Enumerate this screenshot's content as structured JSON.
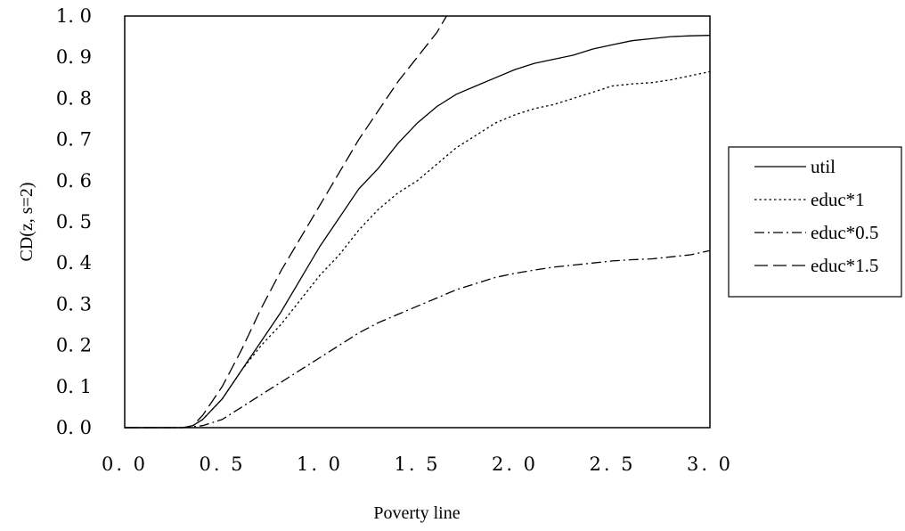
{
  "chart_data": {
    "type": "line",
    "title": "",
    "xlabel": "Poverty line",
    "ylabel": "CD(z, s=2)",
    "xlim": [
      0,
      3
    ],
    "ylim": [
      0,
      1
    ],
    "x_ticks": [
      "0. 0",
      "0. 5",
      "1. 0",
      "1. 5",
      "2. 0",
      "2. 5",
      "3. 0"
    ],
    "y_ticks": [
      "0. 0",
      "0. 1",
      "0. 2",
      "0. 3",
      "0. 4",
      "0. 5",
      "0. 6",
      "0. 7",
      "0. 8",
      "0. 9",
      "1. 0"
    ],
    "grid": false,
    "legend_position": "right",
    "series": [
      {
        "name": "util",
        "style": "solid",
        "x": [
          0,
          0.3,
          0.35,
          0.4,
          0.5,
          0.6,
          0.7,
          0.8,
          0.9,
          1.0,
          1.1,
          1.2,
          1.3,
          1.4,
          1.5,
          1.6,
          1.7,
          1.8,
          1.9,
          2.0,
          2.1,
          2.2,
          2.3,
          2.4,
          2.5,
          2.6,
          2.7,
          2.8,
          2.9,
          3.0
        ],
        "y": [
          0,
          0,
          0.005,
          0.02,
          0.07,
          0.14,
          0.21,
          0.28,
          0.36,
          0.44,
          0.51,
          0.58,
          0.63,
          0.69,
          0.74,
          0.78,
          0.81,
          0.83,
          0.85,
          0.87,
          0.885,
          0.895,
          0.905,
          0.92,
          0.93,
          0.94,
          0.945,
          0.95,
          0.952,
          0.953
        ]
      },
      {
        "name": "educ*1",
        "style": "dotted",
        "x": [
          0,
          0.3,
          0.35,
          0.4,
          0.5,
          0.6,
          0.7,
          0.8,
          0.9,
          1.0,
          1.1,
          1.2,
          1.3,
          1.4,
          1.5,
          1.6,
          1.7,
          1.8,
          1.9,
          2.0,
          2.1,
          2.2,
          2.3,
          2.4,
          2.5,
          2.6,
          2.7,
          2.8,
          2.9,
          3.0
        ],
        "y": [
          0,
          0,
          0.005,
          0.02,
          0.07,
          0.14,
          0.2,
          0.25,
          0.31,
          0.37,
          0.42,
          0.48,
          0.53,
          0.57,
          0.6,
          0.64,
          0.68,
          0.71,
          0.74,
          0.76,
          0.775,
          0.785,
          0.8,
          0.815,
          0.83,
          0.835,
          0.838,
          0.845,
          0.855,
          0.865
        ]
      },
      {
        "name": "educ*0.5",
        "style": "dashdot",
        "x": [
          0,
          0.3,
          0.4,
          0.5,
          0.6,
          0.7,
          0.8,
          0.9,
          1.0,
          1.1,
          1.2,
          1.3,
          1.4,
          1.5,
          1.6,
          1.7,
          1.8,
          1.9,
          2.0,
          2.1,
          2.2,
          2.3,
          2.4,
          2.5,
          2.6,
          2.7,
          2.8,
          2.9,
          3.0
        ],
        "y": [
          0,
          0,
          0.005,
          0.02,
          0.05,
          0.08,
          0.11,
          0.14,
          0.17,
          0.2,
          0.23,
          0.255,
          0.275,
          0.295,
          0.315,
          0.335,
          0.35,
          0.365,
          0.375,
          0.383,
          0.39,
          0.395,
          0.4,
          0.405,
          0.408,
          0.41,
          0.415,
          0.42,
          0.43
        ]
      },
      {
        "name": "educ*1.5",
        "style": "dashed",
        "x": [
          0,
          0.3,
          0.35,
          0.4,
          0.5,
          0.6,
          0.7,
          0.8,
          0.9,
          1.0,
          1.1,
          1.2,
          1.3,
          1.4,
          1.5,
          1.6,
          1.65
        ],
        "y": [
          0,
          0,
          0.005,
          0.03,
          0.1,
          0.19,
          0.29,
          0.38,
          0.46,
          0.54,
          0.62,
          0.7,
          0.77,
          0.84,
          0.9,
          0.96,
          1.0
        ]
      }
    ]
  }
}
